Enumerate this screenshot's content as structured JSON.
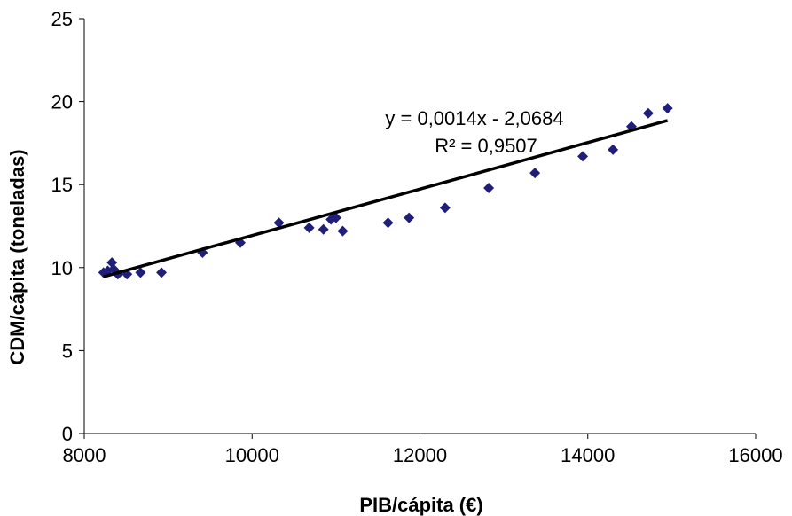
{
  "chart_data": {
    "type": "scatter",
    "xlabel": "PIB/cápita (€)",
    "ylabel": "CDM/cápita (toneladas)",
    "xlim": [
      8000,
      16000
    ],
    "ylim": [
      0,
      25
    ],
    "xticks": [
      8000,
      10000,
      12000,
      14000,
      16000
    ],
    "xtick_labels": [
      "8000",
      "10000",
      "12000",
      "14000",
      "16000"
    ],
    "yticks": [
      0,
      5,
      10,
      15,
      20,
      25
    ],
    "ytick_labels": [
      "0",
      "5",
      "10",
      "15",
      "20",
      "25"
    ],
    "grid": false,
    "series": [
      {
        "marker": "diamond",
        "color": "#1f1f7a",
        "points": [
          {
            "x": 8230,
            "y": 9.7
          },
          {
            "x": 8280,
            "y": 9.8
          },
          {
            "x": 8330,
            "y": 10.3
          },
          {
            "x": 8350,
            "y": 9.9
          },
          {
            "x": 8400,
            "y": 9.6
          },
          {
            "x": 8510,
            "y": 9.6
          },
          {
            "x": 8670,
            "y": 9.7
          },
          {
            "x": 8920,
            "y": 9.7
          },
          {
            "x": 9410,
            "y": 10.9
          },
          {
            "x": 9860,
            "y": 11.5
          },
          {
            "x": 10320,
            "y": 12.7
          },
          {
            "x": 10680,
            "y": 12.4
          },
          {
            "x": 10850,
            "y": 12.3
          },
          {
            "x": 10940,
            "y": 12.9
          },
          {
            "x": 11000,
            "y": 13.0
          },
          {
            "x": 11080,
            "y": 12.2
          },
          {
            "x": 11620,
            "y": 12.7
          },
          {
            "x": 11870,
            "y": 13.0
          },
          {
            "x": 12300,
            "y": 13.6
          },
          {
            "x": 12820,
            "y": 14.8
          },
          {
            "x": 13370,
            "y": 15.7
          },
          {
            "x": 13940,
            "y": 16.7
          },
          {
            "x": 14300,
            "y": 17.1
          },
          {
            "x": 14520,
            "y": 18.5
          },
          {
            "x": 14720,
            "y": 19.3
          },
          {
            "x": 14950,
            "y": 19.6
          }
        ]
      }
    ],
    "trendline": {
      "type": "linear",
      "slope": 0.0014,
      "intercept": -2.0684,
      "x_range": [
        8230,
        14950
      ],
      "color": "#000000",
      "equation_label": "y = 0,0014x - 2,0684",
      "r2_label": "R² = 0,9507"
    }
  }
}
